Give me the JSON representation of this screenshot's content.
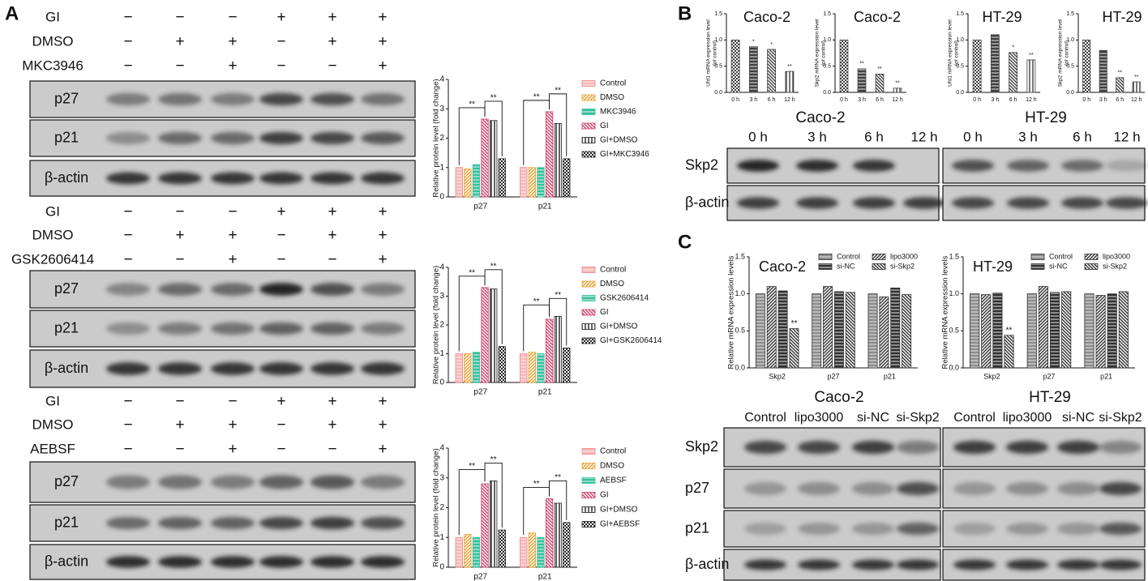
{
  "panel_labels": [
    "A",
    "B",
    "C"
  ],
  "panel_a": {
    "sets": [
      {
        "treatments": [
          {
            "label": "GI",
            "signs": [
              "−",
              "−",
              "−",
              "+",
              "+",
              "+"
            ]
          },
          {
            "label": "DMSO",
            "signs": [
              "−",
              "+",
              "+",
              "−",
              "+",
              "+"
            ]
          },
          {
            "label": "MKC3946",
            "signs": [
              "−",
              "−",
              "+",
              "−",
              "−",
              "+"
            ]
          }
        ],
        "blot_rows": [
          "p27",
          "p21",
          "β-actin"
        ]
      },
      {
        "treatments": [
          {
            "label": "GI",
            "signs": [
              "−",
              "−",
              "−",
              "+",
              "+",
              "+"
            ]
          },
          {
            "label": "DMSO",
            "signs": [
              "−",
              "+",
              "+",
              "−",
              "+",
              "+"
            ]
          },
          {
            "label": "GSK2606414",
            "signs": [
              "−",
              "−",
              "+",
              "−",
              "−",
              "+"
            ]
          }
        ],
        "blot_rows": [
          "p27",
          "p21",
          "β-actin"
        ]
      },
      {
        "treatments": [
          {
            "label": "GI",
            "signs": [
              "−",
              "−",
              "−",
              "+",
              "+",
              "+"
            ]
          },
          {
            "label": "DMSO",
            "signs": [
              "−",
              "+",
              "+",
              "−",
              "+",
              "+"
            ]
          },
          {
            "label": "AEBSF",
            "signs": [
              "−",
              "−",
              "+",
              "−",
              "−",
              "+"
            ]
          }
        ],
        "blot_rows": [
          "p27",
          "p21",
          "β-actin"
        ]
      }
    ]
  },
  "panel_b": {
    "blots": [
      {
        "cell_line": "Caco-2",
        "lanes": [
          "0 h",
          "3 h",
          "6 h",
          "12 h"
        ],
        "rows": [
          "Skp2",
          "β-actin"
        ]
      },
      {
        "cell_line": "HT-29",
        "lanes": [
          "0 h",
          "3 h",
          "6 h",
          "12 h"
        ],
        "rows": [
          "Skp2",
          "β-actin"
        ]
      }
    ]
  },
  "panel_c": {
    "blots": [
      {
        "cell_line": "Caco-2",
        "lanes": [
          "Control",
          "lipo3000",
          "si-NC",
          "si-Skp2"
        ],
        "rows": [
          "Skp2",
          "p27",
          "p21",
          "β-actin"
        ]
      },
      {
        "cell_line": "HT-29",
        "lanes": [
          "Control",
          "lipo3000",
          "si-NC",
          "si-Skp2"
        ],
        "rows": [
          "Skp2",
          "p27",
          "p21",
          "β-actin"
        ]
      }
    ]
  },
  "chart_data": [
    {
      "type": "bar",
      "y_label": "Relative protein level (fold change)",
      "categories": [
        "p27",
        "p21"
      ],
      "ylim": [
        0,
        4
      ],
      "yticks": [
        0,
        1,
        2,
        3,
        4
      ],
      "series": [
        {
          "name": "Control",
          "color": "#f08080",
          "values": [
            1.0,
            1.0
          ]
        },
        {
          "name": "DMSO",
          "color": "#eaa030",
          "values": [
            0.95,
            1.0
          ]
        },
        {
          "name": "MKC3946",
          "color": "#38c09c",
          "values": [
            1.1,
            1.0
          ]
        },
        {
          "name": "GI",
          "color": "#d03c64",
          "values": [
            2.65,
            2.9
          ]
        },
        {
          "name": "GI+DMSO",
          "color": "#202020",
          "values": [
            2.6,
            2.5
          ]
        },
        {
          "name": "GI+MKC3946",
          "color": "#202020",
          "values": [
            1.3,
            1.3
          ]
        }
      ],
      "annotations": [
        "**",
        "**",
        "**",
        "**"
      ]
    },
    {
      "type": "bar",
      "y_label": "Relative protein level (fold change)",
      "categories": [
        "p27",
        "p21"
      ],
      "ylim": [
        0,
        4
      ],
      "yticks": [
        0,
        1,
        2,
        3,
        4
      ],
      "series": [
        {
          "name": "Control",
          "color": "#f08080",
          "values": [
            1.0,
            1.0
          ]
        },
        {
          "name": "DMSO",
          "color": "#eaa030",
          "values": [
            1.0,
            1.05
          ]
        },
        {
          "name": "GSK2606414",
          "color": "#38c09c",
          "values": [
            1.05,
            1.0
          ]
        },
        {
          "name": "GI",
          "color": "#d03c64",
          "values": [
            3.3,
            2.2
          ]
        },
        {
          "name": "GI+DMSO",
          "color": "#202020",
          "values": [
            3.25,
            2.3
          ]
        },
        {
          "name": "GI+GSK2606414",
          "color": "#202020",
          "values": [
            1.25,
            1.2
          ]
        }
      ],
      "annotations": [
        "**",
        "**",
        "**",
        "**"
      ]
    },
    {
      "type": "bar",
      "y_label": "Relative protein level (fold change)",
      "categories": [
        "p27",
        "p21"
      ],
      "ylim": [
        0,
        4
      ],
      "yticks": [
        0,
        1,
        2,
        3,
        4
      ],
      "series": [
        {
          "name": "Control",
          "color": "#f08080",
          "values": [
            1.0,
            1.0
          ]
        },
        {
          "name": "DMSO",
          "color": "#eaa030",
          "values": [
            1.1,
            1.15
          ]
        },
        {
          "name": "AEBSF",
          "color": "#38c09c",
          "values": [
            1.0,
            1.0
          ]
        },
        {
          "name": "GI",
          "color": "#d03c64",
          "values": [
            2.8,
            2.3
          ]
        },
        {
          "name": "GI+DMSO",
          "color": "#202020",
          "values": [
            2.9,
            2.15
          ]
        },
        {
          "name": "GI+AEBSF",
          "color": "#202020",
          "values": [
            1.25,
            1.5
          ]
        }
      ],
      "annotations": [
        "**",
        "**",
        "**",
        "**"
      ]
    },
    {
      "type": "bar",
      "title": "Caco-2",
      "y_label": [
        "Ufd1 mRNA expression level",
        "(of control)"
      ],
      "categories": [
        "0 h",
        "3 h",
        "6 h",
        "12 h"
      ],
      "values": [
        1.0,
        0.87,
        0.82,
        0.4
      ],
      "color": "#404040",
      "ylim": [
        0,
        1.5
      ],
      "yticks": [
        {
          "value": 0,
          "label": "0.0"
        },
        {
          "value": 0.5,
          "label": "0.5"
        },
        {
          "value": 1,
          "label": "1.0"
        },
        {
          "value": 1.5,
          "label": "1.5"
        }
      ],
      "annotations": [
        "*",
        "*",
        "**"
      ]
    },
    {
      "type": "bar",
      "title": "Caco-2",
      "y_label": [
        "Skp2 mRNA expression level",
        "(of control)"
      ],
      "categories": [
        "0 h",
        "3 h",
        "6 h",
        "12 h"
      ],
      "values": [
        1.0,
        0.45,
        0.35,
        0.08
      ],
      "color": "#404040",
      "ylim": [
        0,
        1.5
      ],
      "yticks": [
        {
          "value": 0,
          "label": "0.0"
        },
        {
          "value": 0.5,
          "label": "0.5"
        },
        {
          "value": 1,
          "label": "1.0"
        },
        {
          "value": 1.5,
          "label": "1.5"
        }
      ],
      "annotations": [
        "**",
        "**",
        "**"
      ]
    },
    {
      "type": "bar",
      "title": "HT-29",
      "y_label": [
        "Ufd1 mRNA expression level",
        "(of control)"
      ],
      "categories": [
        "0 h",
        "3 h",
        "6 h",
        "12 h"
      ],
      "values": [
        1.0,
        1.1,
        0.76,
        0.62
      ],
      "color": "#404040",
      "ylim": [
        0,
        1.5
      ],
      "yticks": [
        {
          "value": 0,
          "label": "0.0"
        },
        {
          "value": 0.5,
          "label": "0.5"
        },
        {
          "value": 1,
          "label": "1.0"
        },
        {
          "value": 1.5,
          "label": "1.5"
        }
      ],
      "annotations": [
        "*",
        "**"
      ]
    },
    {
      "type": "bar",
      "title": "HT-29",
      "y_label": [
        "Skp2 mRNA expression level",
        "(of control)"
      ],
      "categories": [
        "0 h",
        "3 h",
        "6 h",
        "12 h"
      ],
      "values": [
        1.0,
        0.8,
        0.28,
        0.2
      ],
      "color": "#404040",
      "ylim": [
        0,
        1.5
      ],
      "yticks": [
        {
          "value": 0,
          "label": "0.0"
        },
        {
          "value": 0.5,
          "label": "0.5"
        },
        {
          "value": 1,
          "label": "1.0"
        },
        {
          "value": 1.5,
          "label": "1.5"
        }
      ],
      "annotations": [
        "**",
        "**"
      ]
    },
    {
      "type": "bar",
      "title": "Caco-2",
      "y_label": "Relative mRNA expression levels",
      "categories": [
        "Skp2",
        "p27",
        "p21"
      ],
      "ylim": [
        0,
        1.5
      ],
      "yticks": [
        {
          "value": 0,
          "label": "0.0"
        },
        {
          "value": 0.5,
          "label": "0.5"
        },
        {
          "value": 1,
          "label": "1.0"
        },
        {
          "value": 1.5,
          "label": "1.5"
        }
      ],
      "series": [
        {
          "name": "Control",
          "color": "#303030",
          "values": [
            1.0,
            1.0,
            1.0
          ]
        },
        {
          "name": "lipo3000",
          "color": "#303030",
          "values": [
            1.1,
            1.1,
            0.96
          ]
        },
        {
          "name": "si-NC",
          "color": "#303030",
          "values": [
            1.04,
            1.03,
            1.08
          ]
        },
        {
          "name": "si-Skp2",
          "color": "#303030",
          "values": [
            0.53,
            1.02,
            0.99
          ]
        }
      ],
      "annotations": [
        "**"
      ]
    },
    {
      "type": "bar",
      "title": "HT-29",
      "y_label": "Relative mRNA expression levels",
      "categories": [
        "Skp2",
        "p27",
        "p21"
      ],
      "ylim": [
        0,
        1.5
      ],
      "yticks": [
        {
          "value": 0,
          "label": "0.0"
        },
        {
          "value": 0.5,
          "label": "0.5"
        },
        {
          "value": 1,
          "label": "1.0"
        },
        {
          "value": 1.5,
          "label": "1.5"
        }
      ],
      "series": [
        {
          "name": "Control",
          "color": "#303030",
          "values": [
            1.0,
            1.0,
            1.0
          ]
        },
        {
          "name": "lipo3000",
          "color": "#303030",
          "values": [
            0.99,
            1.1,
            0.98
          ]
        },
        {
          "name": "si-NC",
          "color": "#303030",
          "values": [
            1.01,
            1.02,
            1.0
          ]
        },
        {
          "name": "si-Skp2",
          "color": "#303030",
          "values": [
            0.44,
            1.03,
            1.03
          ]
        }
      ],
      "annotations": [
        "**"
      ]
    }
  ]
}
